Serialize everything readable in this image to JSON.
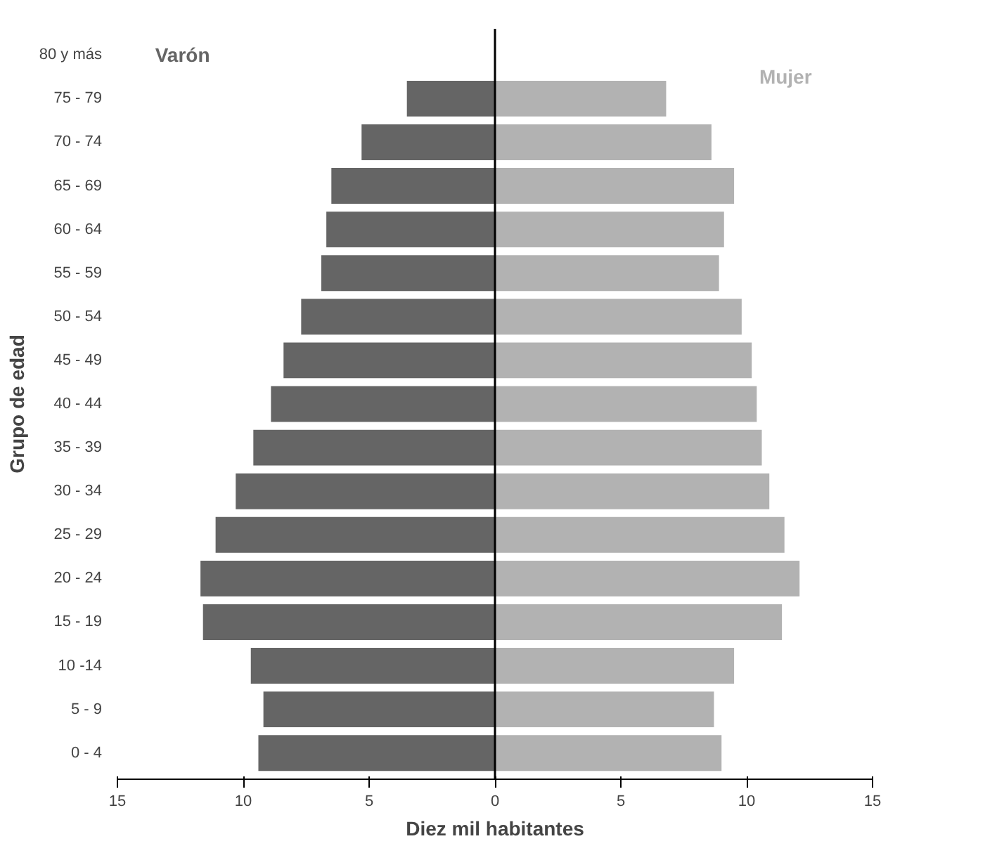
{
  "chart_data": {
    "type": "bar",
    "orientation": "horizontal",
    "xlabel": "Diez mil habitantes",
    "ylabel": "Grupo de edad",
    "categories": [
      "80 y más",
      "75 - 79",
      "70 - 74",
      "65 - 69",
      "60 - 64",
      "55 - 59",
      "50 - 54",
      "45 - 49",
      "40 - 44",
      "35 - 39",
      "30 - 34",
      "25 - 29",
      "20 - 24",
      "15 - 19",
      "10 -14",
      "5 - 9",
      "0 - 4"
    ],
    "series": [
      {
        "name": "Varón",
        "color": "#656565",
        "values": [
          null,
          -3.5,
          -5.3,
          -6.5,
          -6.7,
          -6.9,
          -7.7,
          -8.4,
          -8.9,
          -9.6,
          -10.3,
          -11.1,
          -11.7,
          -11.6,
          -9.7,
          -9.2,
          -9.4
        ]
      },
      {
        "name": "Mujer",
        "color": "#b2b2b2",
        "values": [
          null,
          6.8,
          8.6,
          9.5,
          9.1,
          8.9,
          9.8,
          10.2,
          10.4,
          10.6,
          10.9,
          11.5,
          12.1,
          11.4,
          9.5,
          8.7,
          9.0
        ]
      }
    ],
    "xlim": [
      -15,
      15
    ],
    "xticks": [
      {
        "value": -15,
        "label": "15"
      },
      {
        "value": -10,
        "label": "10"
      },
      {
        "value": -5,
        "label": "5"
      },
      0,
      5,
      10,
      15
    ],
    "ref_lines": [
      {
        "axis": "x",
        "value": 0,
        "color": "#000000"
      }
    ],
    "stacked": true,
    "grid": false
  }
}
